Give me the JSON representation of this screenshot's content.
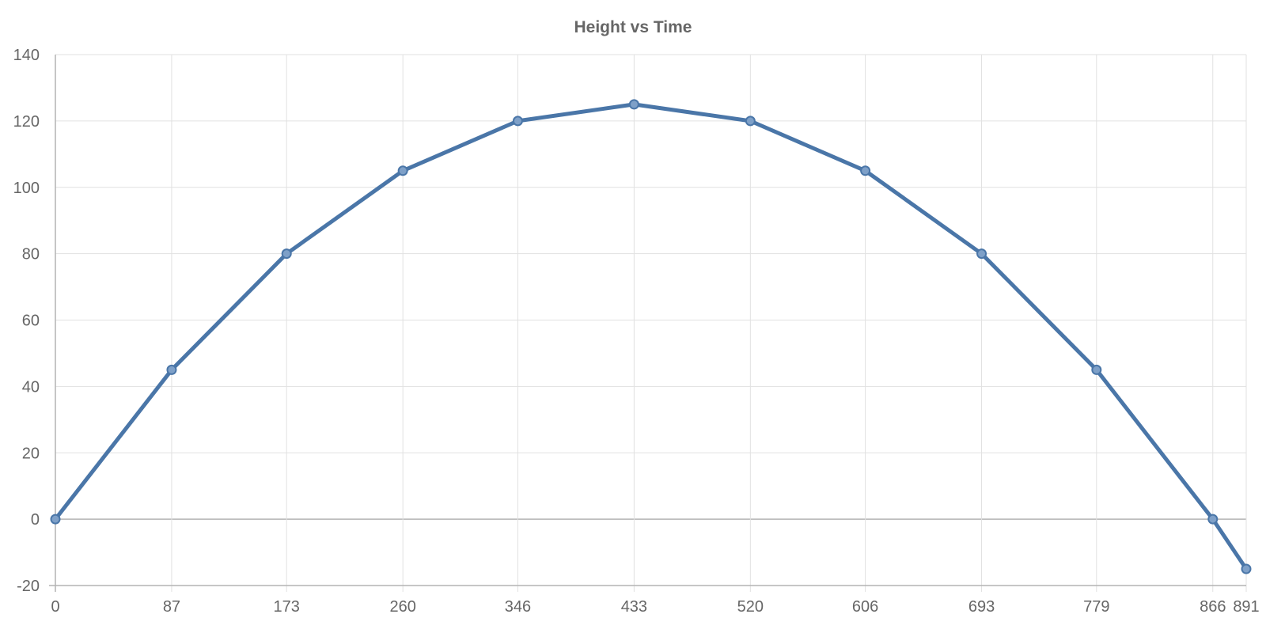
{
  "chart_data": {
    "type": "line",
    "title": "Height vs Time",
    "xlabel": "",
    "ylabel": "",
    "x": [
      0,
      87,
      173,
      260,
      346,
      433,
      520,
      606,
      693,
      779,
      866,
      891
    ],
    "x_tick_labels": [
      "0",
      "87",
      "173",
      "260",
      "346",
      "433",
      "520",
      "606",
      "693",
      "779",
      "866",
      "891"
    ],
    "series": [
      {
        "values": [
          0,
          45,
          80,
          105,
          120,
          125,
          120,
          105,
          80,
          45,
          0,
          -15
        ],
        "color": "#4a76a8"
      }
    ],
    "ylim": [
      -20,
      140
    ],
    "y_ticks": [
      -20,
      0,
      20,
      40,
      60,
      80,
      100,
      120,
      140
    ],
    "grid": true,
    "legend": "none",
    "colors": {
      "line": "#4a76a8",
      "point_fill": "#7ea0c8",
      "grid": "#e1e1e1",
      "axis": "#b3b3b3",
      "text": "#666666"
    }
  }
}
